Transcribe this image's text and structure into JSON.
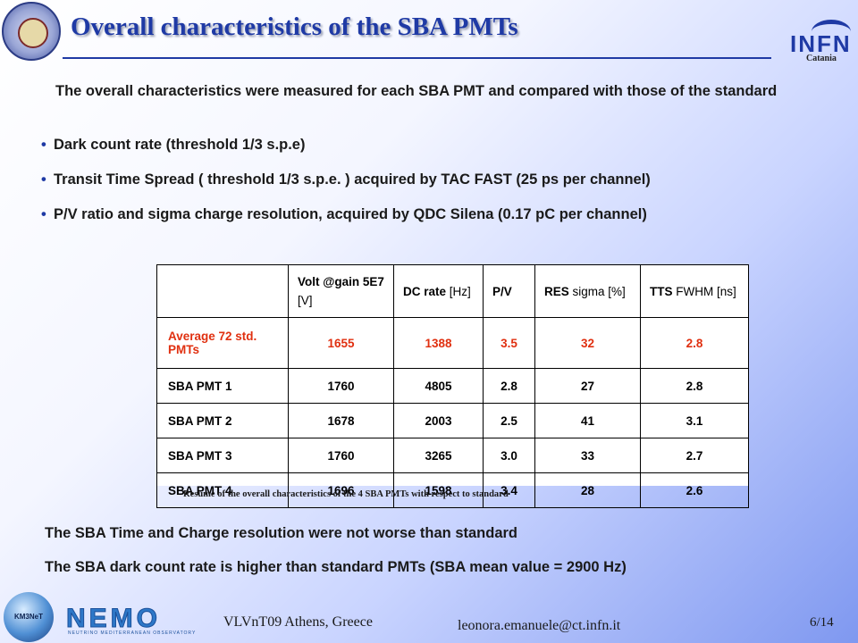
{
  "header": {
    "title": "Overall characteristics of the SBA PMTs",
    "logo_letters": "INFN",
    "logo_city": "Catania"
  },
  "intro": "The overall characteristics were measured for each SBA PMT and compared with those of the standard",
  "bullets": [
    "Dark count rate (threshold 1/3 s.p.e)",
    "Transit Time Spread ( threshold 1/3 s.p.e. ) acquired by TAC FAST (25 ps per channel)",
    "P/V ratio and sigma charge resolution, acquired  by QDC Silena (0.17 pC per channel)"
  ],
  "table": {
    "headers": [
      {
        "bold": "",
        "normal": ""
      },
      {
        "bold": "Volt @gain 5E7",
        "normal": " [V]"
      },
      {
        "bold": "DC rate",
        "normal": " [Hz]"
      },
      {
        "bold": "P/V",
        "normal": ""
      },
      {
        "bold": "RES",
        "normal": " sigma [%]"
      },
      {
        "bold": "TTS",
        "normal": " FWHM [ns]"
      }
    ],
    "rows": [
      [
        "Average 72 std. PMTs",
        "1655",
        "1388",
        "3.5",
        "32",
        "2.8"
      ],
      [
        "SBA PMT 1",
        "1760",
        "4805",
        "2.8",
        "27",
        "2.8"
      ],
      [
        "SBA PMT 2",
        "1678",
        "2003",
        "2.5",
        "41",
        "3.1"
      ],
      [
        "SBA PMT 3",
        "1760",
        "3265",
        "3.0",
        "33",
        "2.7"
      ],
      [
        "SBA PMT 4",
        "1696",
        "1598",
        "3.4",
        "28",
        "2.6"
      ]
    ],
    "highlight_color": "#e03010"
  },
  "caption": "Resume  of the overall characteristics of the 4 SBA PMTs  with respect to standard",
  "conclusions": [
    "The SBA Time and Charge resolution were not worse than standard",
    "The SBA dark count rate is higher than standard PMTs (SBA mean value = 2900 Hz)"
  ],
  "footer": {
    "left": "VLVnT09 Athens, Greece",
    "email": "leonora.emanuele@ct.infn.it",
    "page": "6/14",
    "km3_logo": "KM3NeT",
    "nemo_logo": "NEMO",
    "nemo_sub": "NEUTRINO MEDITERRANEAN OBSERVATORY"
  },
  "colors": {
    "title": "#1f3aa5",
    "text": "#1a1a1a",
    "highlight_row": "#e03010"
  }
}
